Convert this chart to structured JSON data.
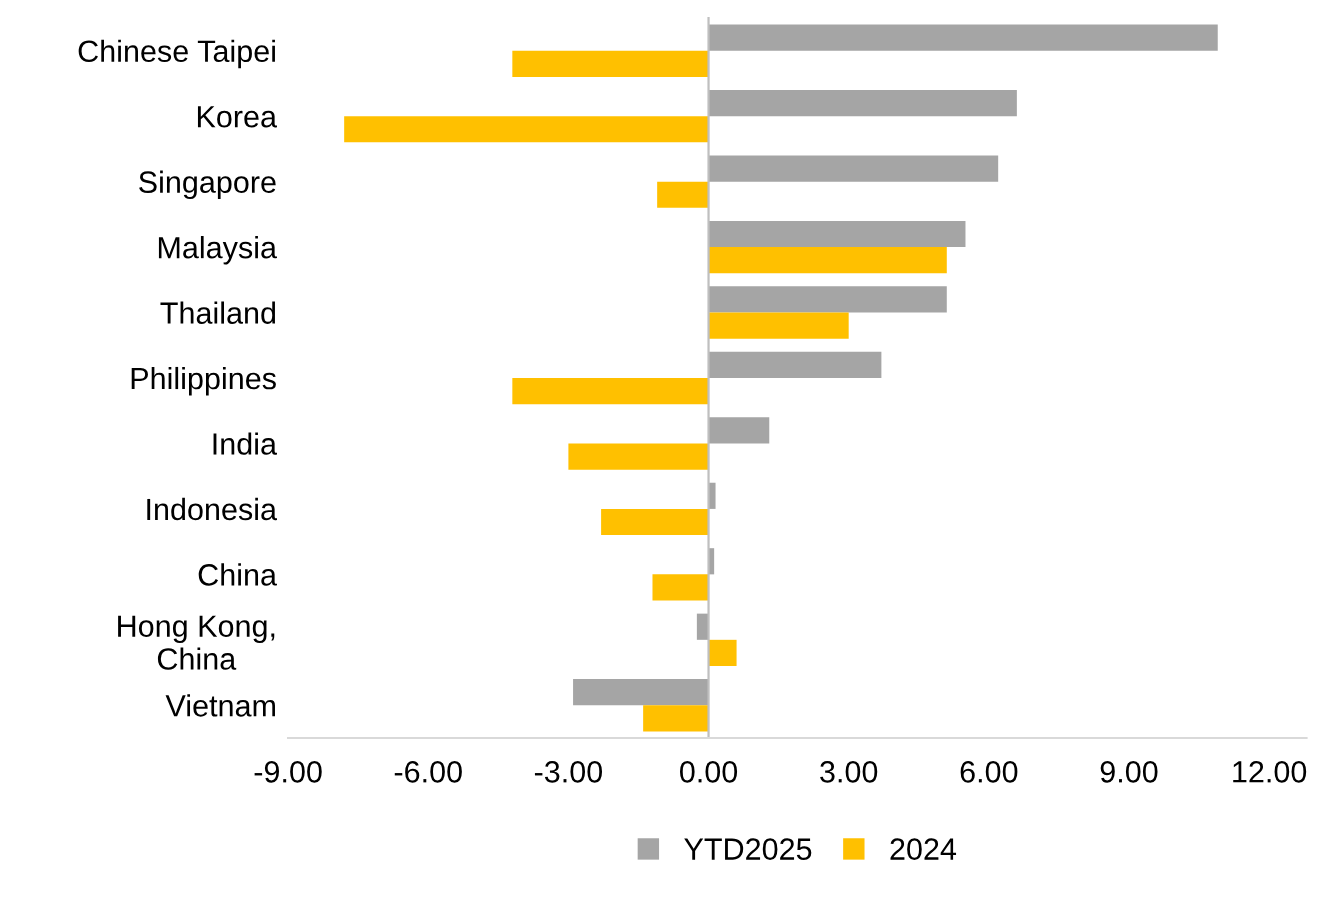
{
  "chart_data": {
    "type": "bar",
    "orientation": "horizontal",
    "categories": [
      "Chinese Taipei",
      "Korea",
      "Singapore",
      "Malaysia",
      "Thailand",
      "Philippines",
      "India",
      "Indonesia",
      "China",
      "Hong Kong,\nChina",
      "Vietnam"
    ],
    "series": [
      {
        "name": "YTD2025",
        "color": "#a5a5a5",
        "values": [
          10.9,
          6.6,
          6.2,
          5.5,
          5.1,
          3.7,
          1.3,
          0.15,
          0.12,
          -0.25,
          -2.9
        ]
      },
      {
        "name": "2024",
        "color": "#ffc000",
        "values": [
          -4.2,
          -7.8,
          -1.1,
          5.1,
          3.0,
          -4.2,
          -3.0,
          -2.3,
          -1.2,
          0.6,
          -1.4
        ]
      }
    ],
    "xlim": [
      -9,
      12.8
    ],
    "xticks": [
      {
        "value": -9,
        "label": "-9.00"
      },
      {
        "value": -6,
        "label": "-6.00"
      },
      {
        "value": -3,
        "label": "-3.00"
      },
      {
        "value": 0,
        "label": "0.00"
      },
      {
        "value": 3,
        "label": "3.00"
      },
      {
        "value": 6,
        "label": "6.00"
      },
      {
        "value": 9,
        "label": "9.00"
      },
      {
        "value": 12,
        "label": "12.00"
      }
    ],
    "legend": "bottom"
  }
}
